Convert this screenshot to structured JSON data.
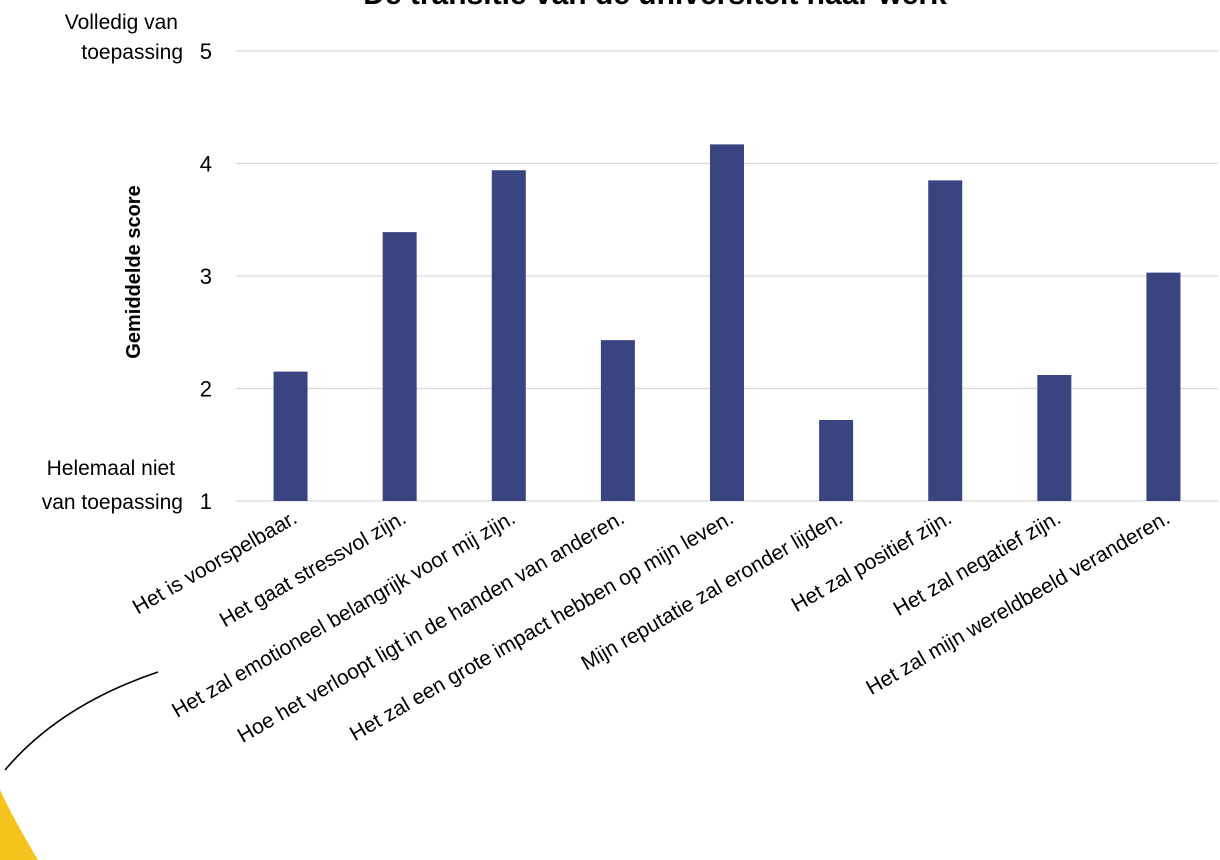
{
  "chart_data": {
    "type": "bar",
    "title": "De transitie van de universiteit naar werk",
    "ylabel": "Gemiddelde score",
    "xlabel": "",
    "ylim": [
      1,
      5
    ],
    "yticks": [
      1,
      2,
      3,
      4,
      5
    ],
    "y_top_anchor": [
      "Volledig van",
      "toepassing"
    ],
    "y_bottom_anchor": [
      "Helemaal niet",
      "van toepassing"
    ],
    "grid": true,
    "categories": [
      "Het is voorspelbaar.",
      "Het gaat stressvol zijn.",
      "Het zal emotioneel belangrijk voor mij zijn.",
      "Hoe het verloopt ligt in de handen van anderen.",
      "Het zal een grote impact hebben op mijn leven.",
      "Mijn reputatie zal eronder lijden.",
      "Het zal positief zijn.",
      "Het zal negatief zijn.",
      "Het zal mijn wereldbeeld veranderen."
    ],
    "values": [
      2.15,
      3.39,
      3.94,
      2.43,
      4.17,
      1.72,
      3.85,
      2.12,
      3.03
    ]
  },
  "colors": {
    "bar": "#3a4480",
    "grid": "#d9d9d9",
    "text": "#000000",
    "accent_yellow": "#f6c21c"
  }
}
